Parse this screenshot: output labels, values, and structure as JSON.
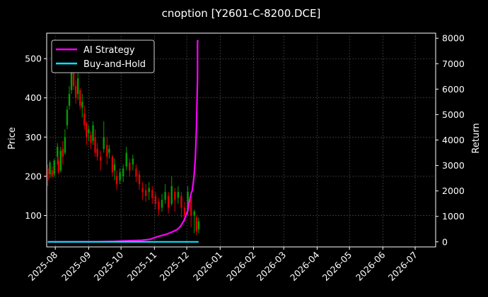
{
  "chart_data": {
    "type": "line",
    "title": "cnoption [Y2601-C-8200.DCE]",
    "background": "#000000",
    "grid": true,
    "legend_position": "top-left",
    "left_axis": {
      "label": "Price",
      "ticks": [
        100,
        200,
        300,
        400,
        500
      ],
      "range": [
        20,
        565
      ]
    },
    "right_axis": {
      "label": "Return",
      "ticks": [
        0,
        1000,
        2000,
        3000,
        4000,
        5000,
        6000,
        7000,
        8000
      ],
      "range": [
        -200,
        8200
      ]
    },
    "x_axis": {
      "ticks": [
        "2025-08",
        "2025-09",
        "2025-10",
        "2025-11",
        "2025-12",
        "2026-01",
        "2026-02",
        "2026-03",
        "2026-04",
        "2026-05",
        "2026-06",
        "2026-07"
      ],
      "range": [
        "2025-07-24",
        "2026-07-20"
      ]
    },
    "candles_color_up": "#00a000",
    "candles_color_down": "#e00000",
    "candles": [
      [
        "2025-07-25",
        190,
        220,
        175,
        230,
        "down"
      ],
      [
        "2025-07-27",
        205,
        235,
        195,
        240,
        "up"
      ],
      [
        "2025-07-29",
        215,
        200,
        195,
        225,
        "down"
      ],
      [
        "2025-07-31",
        205,
        240,
        198,
        245,
        "up"
      ],
      [
        "2025-08-03",
        250,
        275,
        230,
        285,
        "up"
      ],
      [
        "2025-08-04",
        240,
        210,
        205,
        250,
        "down"
      ],
      [
        "2025-08-06",
        215,
        265,
        210,
        275,
        "up"
      ],
      [
        "2025-08-08",
        270,
        250,
        230,
        290,
        "down"
      ],
      [
        "2025-08-10",
        260,
        300,
        255,
        320,
        "up"
      ],
      [
        "2025-08-12",
        330,
        370,
        320,
        380,
        "up"
      ],
      [
        "2025-08-14",
        380,
        410,
        370,
        430,
        "up"
      ],
      [
        "2025-08-16",
        420,
        480,
        410,
        500,
        "up"
      ],
      [
        "2025-08-18",
        470,
        430,
        420,
        485,
        "down"
      ],
      [
        "2025-08-20",
        430,
        400,
        385,
        445,
        "down"
      ],
      [
        "2025-08-22",
        410,
        450,
        395,
        470,
        "up"
      ],
      [
        "2025-08-24",
        420,
        380,
        370,
        425,
        "down"
      ],
      [
        "2025-08-26",
        375,
        390,
        350,
        410,
        "up"
      ],
      [
        "2025-08-28",
        360,
        330,
        320,
        380,
        "down"
      ],
      [
        "2025-08-30",
        335,
        300,
        280,
        340,
        "down"
      ],
      [
        "2025-09-01",
        310,
        320,
        290,
        330,
        "up"
      ],
      [
        "2025-09-03",
        305,
        285,
        270,
        315,
        "down"
      ],
      [
        "2025-09-05",
        290,
        330,
        280,
        340,
        "up"
      ],
      [
        "2025-09-07",
        300,
        260,
        250,
        320,
        "down"
      ],
      [
        "2025-09-09",
        270,
        250,
        240,
        285,
        "down"
      ],
      [
        "2025-09-12",
        250,
        240,
        215,
        265,
        "down"
      ],
      [
        "2025-09-15",
        270,
        300,
        260,
        340,
        "up"
      ],
      [
        "2025-09-18",
        280,
        250,
        230,
        300,
        "down"
      ],
      [
        "2025-09-20",
        260,
        270,
        245,
        280,
        "up"
      ],
      [
        "2025-09-23",
        250,
        210,
        200,
        255,
        "down"
      ],
      [
        "2025-09-25",
        215,
        230,
        190,
        245,
        "up"
      ],
      [
        "2025-09-27",
        200,
        180,
        165,
        215,
        "down"
      ],
      [
        "2025-09-30",
        190,
        210,
        180,
        220,
        "up"
      ],
      [
        "2025-10-03",
        200,
        220,
        185,
        230,
        "up"
      ],
      [
        "2025-10-06",
        225,
        260,
        215,
        275,
        "up"
      ],
      [
        "2025-10-09",
        235,
        215,
        200,
        245,
        "down"
      ],
      [
        "2025-10-12",
        230,
        245,
        215,
        255,
        "up"
      ],
      [
        "2025-10-15",
        220,
        200,
        185,
        230,
        "down"
      ],
      [
        "2025-10-18",
        205,
        180,
        165,
        215,
        "down"
      ],
      [
        "2025-10-21",
        170,
        160,
        140,
        185,
        "down"
      ],
      [
        "2025-10-24",
        165,
        150,
        135,
        180,
        "down"
      ],
      [
        "2025-10-27",
        160,
        170,
        140,
        185,
        "up"
      ],
      [
        "2025-10-30",
        165,
        145,
        130,
        175,
        "down"
      ],
      [
        "2025-11-02",
        150,
        130,
        115,
        160,
        "down"
      ],
      [
        "2025-11-05",
        135,
        115,
        100,
        145,
        "down"
      ],
      [
        "2025-11-08",
        120,
        140,
        110,
        155,
        "up"
      ],
      [
        "2025-11-11",
        140,
        160,
        130,
        180,
        "up"
      ],
      [
        "2025-11-14",
        150,
        120,
        105,
        160,
        "down"
      ],
      [
        "2025-11-17",
        130,
        175,
        125,
        200,
        "up"
      ],
      [
        "2025-11-20",
        160,
        140,
        110,
        170,
        "down"
      ],
      [
        "2025-11-23",
        145,
        160,
        130,
        175,
        "up"
      ],
      [
        "2025-11-26",
        150,
        120,
        95,
        160,
        "down"
      ],
      [
        "2025-11-29",
        120,
        100,
        85,
        135,
        "down"
      ],
      [
        "2025-12-02",
        110,
        160,
        100,
        175,
        "up"
      ],
      [
        "2025-12-05",
        140,
        100,
        70,
        150,
        "down"
      ],
      [
        "2025-12-08",
        100,
        110,
        55,
        115,
        "up"
      ],
      [
        "2025-12-10",
        95,
        60,
        50,
        100,
        "down"
      ],
      [
        "2025-12-12",
        65,
        85,
        55,
        95,
        "up"
      ]
    ],
    "series": [
      {
        "name": "AI Strategy",
        "color": "#ff00ff",
        "axis": "right",
        "points": [
          [
            "2025-07-25",
            0
          ],
          [
            "2025-08-15",
            2
          ],
          [
            "2025-09-10",
            5
          ],
          [
            "2025-09-25",
            20
          ],
          [
            "2025-10-05",
            40
          ],
          [
            "2025-10-20",
            60
          ],
          [
            "2025-10-28",
            100
          ],
          [
            "2025-11-01",
            160
          ],
          [
            "2025-11-06",
            230
          ],
          [
            "2025-11-10",
            270
          ],
          [
            "2025-11-14",
            330
          ],
          [
            "2025-11-18",
            400
          ],
          [
            "2025-11-22",
            480
          ],
          [
            "2025-11-25",
            600
          ],
          [
            "2025-11-28",
            800
          ],
          [
            "2025-11-30",
            1000
          ],
          [
            "2025-12-02",
            1250
          ],
          [
            "2025-12-03",
            1500
          ],
          [
            "2025-12-05",
            1900
          ],
          [
            "2025-12-06",
            2000
          ],
          [
            "2025-12-07",
            2300
          ],
          [
            "2025-12-08",
            2700
          ],
          [
            "2025-12-09",
            3300
          ],
          [
            "2025-12-10",
            4500
          ],
          [
            "2025-12-11",
            6500
          ],
          [
            "2025-12-11",
            7900
          ],
          [
            "2025-12-12",
            7900
          ]
        ]
      },
      {
        "name": "Buy-and-Hold",
        "color": "#00e5ff",
        "axis": "right",
        "points": [
          [
            "2025-07-25",
            0
          ],
          [
            "2025-12-12",
            0
          ]
        ]
      }
    ]
  }
}
